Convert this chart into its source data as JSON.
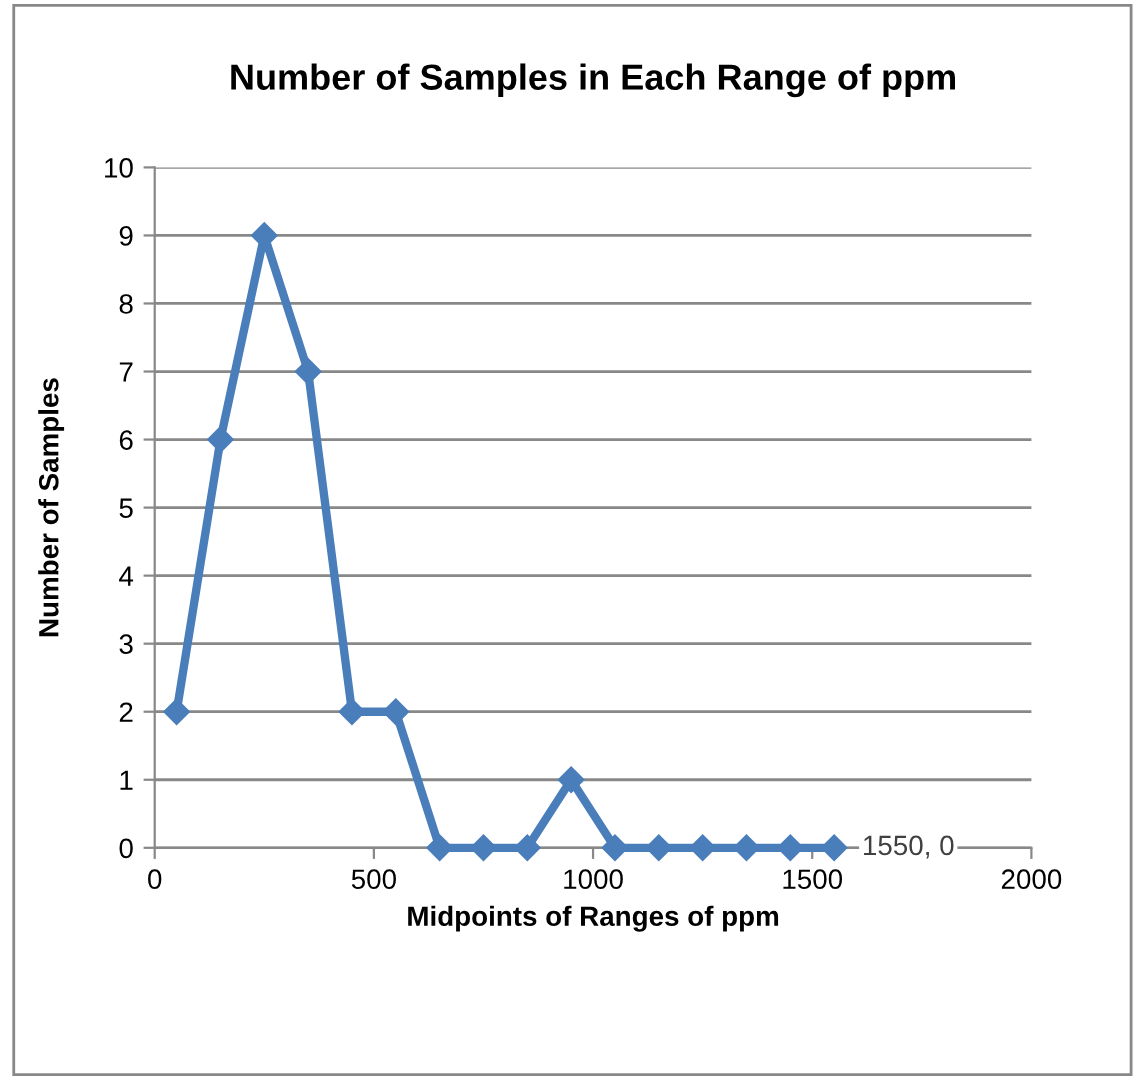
{
  "chart_data": {
    "type": "line",
    "title": "Number of Samples in Each Range of ppm",
    "xlabel": "Midpoints of Ranges of ppm",
    "ylabel": "Number of Samples",
    "x": [
      50,
      150,
      250,
      350,
      450,
      550,
      650,
      750,
      850,
      950,
      1050,
      1150,
      1250,
      1350,
      1450,
      1550
    ],
    "series": [
      {
        "color": "#4a7ebb",
        "values": [
          2,
          6,
          9,
          7,
          2,
          2,
          0,
          0,
          0,
          1,
          0,
          0,
          0,
          0,
          0,
          0
        ]
      }
    ],
    "xlim": [
      0,
      2000
    ],
    "xticks": [
      0,
      500,
      1000,
      1500,
      2000
    ],
    "ylim": [
      0,
      10
    ],
    "yticks": [
      0,
      1,
      2,
      3,
      4,
      5,
      6,
      7,
      8,
      9,
      10
    ],
    "grid": "y",
    "marker": "diamond",
    "line_style": "solid",
    "legend": false,
    "annotations": [
      {
        "text": "1550, 0",
        "x": 1550,
        "y": 0
      }
    ]
  }
}
